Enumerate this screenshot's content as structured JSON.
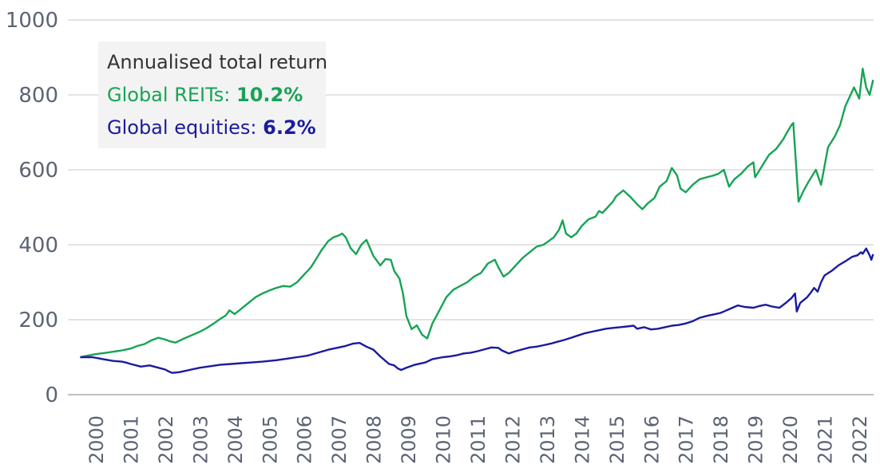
{
  "chart_data": {
    "type": "line",
    "title": "",
    "xlabel": "",
    "ylabel": "",
    "ylim": [
      0,
      1000
    ],
    "yticks": [
      0,
      200,
      400,
      600,
      800,
      1000
    ],
    "xlim": [
      1999.5,
      2022.5
    ],
    "year_labels": [
      "2000",
      "2001",
      "2002",
      "2003",
      "2004",
      "2005",
      "2006",
      "2007",
      "2008",
      "2009",
      "2010",
      "2011",
      "2012",
      "2013",
      "2014",
      "2015",
      "2016",
      "2017",
      "2018",
      "2019",
      "2020",
      "2021",
      "2022"
    ],
    "legend": {
      "title": "Annualised total return",
      "placement": "top-left",
      "entries": [
        {
          "label": "Global REITs: ",
          "value": "10.2%"
        },
        {
          "label": "Global equities: ",
          "value": "6.2%"
        }
      ]
    },
    "series": [
      {
        "name": "Global REITs",
        "color": "#17a355",
        "x": [
          1999.55,
          1999.7,
          2000.0,
          2000.3,
          2000.45,
          2000.6,
          2000.75,
          2001.0,
          2001.2,
          2001.4,
          2001.6,
          2001.8,
          2002.0,
          2002.15,
          2002.3,
          2002.5,
          2002.75,
          2003.0,
          2003.2,
          2003.4,
          2003.6,
          2003.75,
          2003.85,
          2004.0,
          2004.2,
          2004.4,
          2004.6,
          2004.8,
          2005.0,
          2005.2,
          2005.4,
          2005.6,
          2005.8,
          2006.0,
          2006.2,
          2006.35,
          2006.5,
          2006.7,
          2006.85,
          2007.0,
          2007.1,
          2007.2,
          2007.35,
          2007.5,
          2007.65,
          2007.8,
          2008.0,
          2008.2,
          2008.35,
          2008.5,
          2008.6,
          2008.75,
          2008.85,
          2008.95,
          2009.1,
          2009.25,
          2009.4,
          2009.55,
          2009.7,
          2009.9,
          2010.1,
          2010.3,
          2010.5,
          2010.7,
          2010.9,
          2011.1,
          2011.3,
          2011.5,
          2011.6,
          2011.75,
          2011.9,
          2012.1,
          2012.3,
          2012.5,
          2012.7,
          2012.9,
          2013.05,
          2013.2,
          2013.35,
          2013.45,
          2013.55,
          2013.7,
          2013.85,
          2014.0,
          2014.2,
          2014.4,
          2014.5,
          2014.6,
          2014.75,
          2014.9,
          2015.0,
          2015.2,
          2015.4,
          2015.6,
          2015.75,
          2015.9,
          2016.1,
          2016.25,
          2016.45,
          2016.6,
          2016.75,
          2016.85,
          2017.0,
          2017.2,
          2017.4,
          2017.6,
          2017.8,
          2017.95,
          2018.1,
          2018.25,
          2018.4,
          2018.6,
          2018.8,
          2018.95,
          2019.0,
          2019.2,
          2019.4,
          2019.6,
          2019.8,
          2019.95,
          2020.05,
          2020.1,
          2020.25,
          2020.4,
          2020.55,
          2020.75,
          2020.9,
          2021.1,
          2021.3,
          2021.45,
          2021.6,
          2021.75,
          2021.85,
          2022.0,
          2022.1,
          2022.2,
          2022.3,
          2022.4
        ],
        "values": [
          100,
          103,
          108,
          112,
          114,
          116,
          118,
          123,
          130,
          135,
          145,
          152,
          147,
          142,
          139,
          148,
          158,
          168,
          178,
          190,
          203,
          212,
          225,
          215,
          230,
          245,
          260,
          270,
          278,
          285,
          290,
          288,
          300,
          320,
          340,
          362,
          385,
          410,
          420,
          425,
          430,
          420,
          390,
          375,
          400,
          413,
          370,
          345,
          362,
          360,
          330,
          310,
          270,
          210,
          175,
          185,
          160,
          150,
          190,
          225,
          260,
          280,
          290,
          300,
          315,
          325,
          350,
          360,
          340,
          315,
          325,
          345,
          365,
          380,
          395,
          400,
          410,
          420,
          440,
          465,
          430,
          420,
          430,
          450,
          468,
          475,
          490,
          485,
          500,
          515,
          530,
          545,
          528,
          508,
          495,
          510,
          525,
          555,
          570,
          605,
          585,
          550,
          540,
          560,
          575,
          580,
          585,
          590,
          600,
          555,
          575,
          590,
          610,
          620,
          580,
          610,
          640,
          655,
          680,
          705,
          720,
          725,
          515,
          545,
          570,
          600,
          560,
          660,
          690,
          720,
          770,
          800,
          820,
          790,
          870,
          820,
          800,
          840
        ]
      },
      {
        "name": "Global equities",
        "color": "#1a1aa0",
        "x": [
          1999.55,
          1999.9,
          2000.2,
          2000.5,
          2000.75,
          2000.9,
          2001.0,
          2001.3,
          2001.55,
          2001.8,
          2002.0,
          2002.1,
          2002.2,
          2002.4,
          2002.5,
          2002.7,
          2003.0,
          2003.3,
          2003.6,
          2003.9,
          2004.2,
          2004.5,
          2004.8,
          2005.2,
          2005.5,
          2005.8,
          2006.1,
          2006.4,
          2006.7,
          2007.0,
          2007.2,
          2007.4,
          2007.6,
          2007.8,
          2008.0,
          2008.2,
          2008.45,
          2008.6,
          2008.7,
          2008.8,
          2008.95,
          2009.2,
          2009.5,
          2009.7,
          2010.0,
          2010.2,
          2010.4,
          2010.6,
          2010.8,
          2011.0,
          2011.2,
          2011.4,
          2011.6,
          2011.7,
          2011.9,
          2012.1,
          2012.3,
          2012.5,
          2012.7,
          2012.9,
          2013.1,
          2013.3,
          2013.5,
          2013.7,
          2013.9,
          2014.1,
          2014.3,
          2014.5,
          2014.7,
          2014.9,
          2015.1,
          2015.3,
          2015.5,
          2015.6,
          2015.8,
          2016.0,
          2016.2,
          2016.4,
          2016.6,
          2016.8,
          2017.0,
          2017.2,
          2017.4,
          2017.6,
          2017.8,
          2018.0,
          2018.1,
          2018.3,
          2018.5,
          2018.7,
          2018.95,
          2019.1,
          2019.3,
          2019.5,
          2019.7,
          2019.9,
          2020.05,
          2020.15,
          2020.2,
          2020.3,
          2020.5,
          2020.6,
          2020.7,
          2020.8,
          2020.9,
          2021.0,
          2021.2,
          2021.4,
          2021.6,
          2021.8,
          2021.95,
          2022.05,
          2022.1,
          2022.2,
          2022.3,
          2022.35,
          2022.4
        ],
        "values": [
          100,
          100,
          95,
          90,
          88,
          85,
          82,
          75,
          78,
          72,
          67,
          62,
          58,
          60,
          62,
          66,
          72,
          76,
          80,
          82,
          84,
          86,
          88,
          92,
          96,
          100,
          104,
          112,
          120,
          126,
          130,
          136,
          138,
          128,
          120,
          102,
          82,
          78,
          70,
          66,
          72,
          80,
          86,
          95,
          100,
          102,
          105,
          110,
          112,
          116,
          121,
          126,
          125,
          118,
          110,
          116,
          121,
          126,
          128,
          132,
          136,
          141,
          146,
          152,
          158,
          164,
          168,
          172,
          176,
          178,
          180,
          182,
          184,
          176,
          180,
          174,
          176,
          180,
          184,
          186,
          190,
          196,
          205,
          210,
          214,
          218,
          222,
          230,
          238,
          234,
          232,
          236,
          240,
          235,
          232,
          246,
          258,
          270,
          222,
          245,
          260,
          272,
          285,
          275,
          300,
          318,
          330,
          345,
          356,
          368,
          372,
          380,
          376,
          390,
          372,
          360,
          375
        ]
      }
    ]
  }
}
